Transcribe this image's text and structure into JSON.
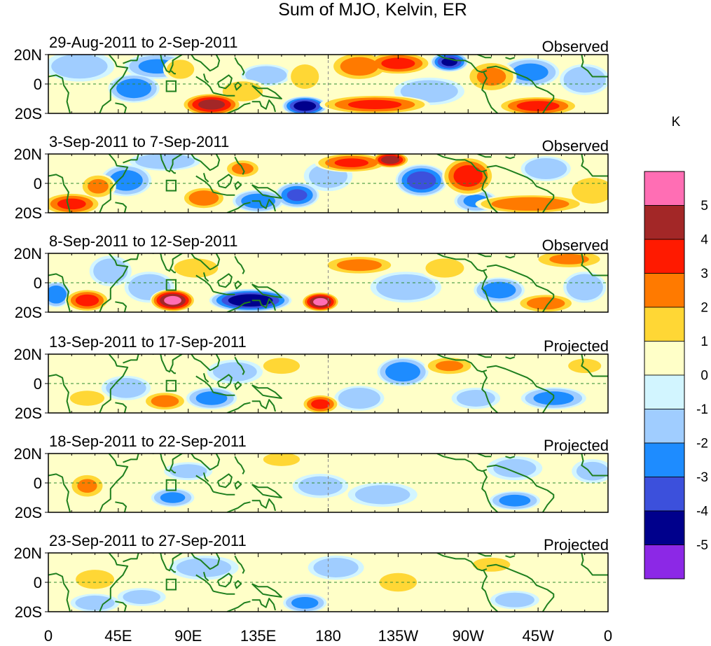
{
  "chart_data": {
    "type": "heatmap",
    "title": "Sum of MJO, Kelvin, ER",
    "colorbar": {
      "unit": "K",
      "tick_labels": [
        "5",
        "4",
        "3",
        "2",
        "1",
        "0",
        "-1",
        "-2",
        "-3",
        "-4",
        "-5"
      ],
      "colors": [
        "#ff6eb4",
        "#a32727",
        "#ff1a00",
        "#ff7a00",
        "#ffd735",
        "#ffffc8",
        "#d2f5ff",
        "#a0cdff",
        "#1e8cff",
        "#3c50dc",
        "#00008c",
        "#8c28e6"
      ]
    },
    "x_tick_labels": [
      "0",
      "45E",
      "90E",
      "135E",
      "180",
      "135W",
      "90W",
      "45W",
      "0"
    ],
    "y_tick_labels": [
      "20N",
      "0",
      "20S"
    ],
    "x_range": [
      0,
      360
    ],
    "y_range": [
      -20,
      20
    ],
    "panels": [
      {
        "date_range": "29-Aug-2011 to 2-Sep-2011",
        "status": "Observed",
        "blobs": [
          {
            "lon": 20,
            "lat": 12,
            "v": -1.5,
            "rx": 20,
            "ry": 10
          },
          {
            "lon": 55,
            "lat": -3,
            "v": -2.8,
            "rx": 14,
            "ry": 9
          },
          {
            "lon": 70,
            "lat": 12,
            "v": -2.2,
            "rx": 18,
            "ry": 8
          },
          {
            "lon": 85,
            "lat": 10,
            "v": 1.4,
            "rx": 10,
            "ry": 8
          },
          {
            "lon": 105,
            "lat": -14,
            "v": 4.3,
            "rx": 16,
            "ry": 7
          },
          {
            "lon": 125,
            "lat": -5,
            "v": 1.6,
            "rx": 14,
            "ry": 8
          },
          {
            "lon": 140,
            "lat": 6,
            "v": -1.8,
            "rx": 14,
            "ry": 7
          },
          {
            "lon": 165,
            "lat": -15,
            "v": -4.6,
            "rx": 12,
            "ry": 6
          },
          {
            "lon": 165,
            "lat": 5,
            "v": 1.5,
            "rx": 10,
            "ry": 10
          },
          {
            "lon": 200,
            "lat": 12,
            "v": 2.6,
            "rx": 16,
            "ry": 9
          },
          {
            "lon": 225,
            "lat": 14,
            "v": 3.3,
            "rx": 18,
            "ry": 7
          },
          {
            "lon": 210,
            "lat": -14,
            "v": 3.2,
            "rx": 30,
            "ry": 6
          },
          {
            "lon": 258,
            "lat": 15,
            "v": -4.2,
            "rx": 10,
            "ry": 6
          },
          {
            "lon": 245,
            "lat": -5,
            "v": -1.6,
            "rx": 20,
            "ry": 9
          },
          {
            "lon": 285,
            "lat": 5,
            "v": 2.2,
            "rx": 14,
            "ry": 10
          },
          {
            "lon": 315,
            "lat": -15,
            "v": 3.4,
            "rx": 22,
            "ry": 6
          },
          {
            "lon": 310,
            "lat": 8,
            "v": -2.4,
            "rx": 16,
            "ry": 9
          },
          {
            "lon": 345,
            "lat": 3,
            "v": -1.9,
            "rx": 14,
            "ry": 10
          }
        ]
      },
      {
        "date_range": "3-Sep-2011 to 7-Sep-2011",
        "status": "Observed",
        "blobs": [
          {
            "lon": 15,
            "lat": -14,
            "v": 3.2,
            "rx": 16,
            "ry": 7
          },
          {
            "lon": 32,
            "lat": -2,
            "v": 2.2,
            "rx": 10,
            "ry": 8
          },
          {
            "lon": 50,
            "lat": 2,
            "v": -2.6,
            "rx": 14,
            "ry": 10
          },
          {
            "lon": 75,
            "lat": 15,
            "v": -1.8,
            "rx": 20,
            "ry": 6
          },
          {
            "lon": 100,
            "lat": -10,
            "v": 2.8,
            "rx": 12,
            "ry": 7
          },
          {
            "lon": 125,
            "lat": 10,
            "v": 2.3,
            "rx": 10,
            "ry": 6
          },
          {
            "lon": 135,
            "lat": -12,
            "v": -2.7,
            "rx": 14,
            "ry": 7
          },
          {
            "lon": 160,
            "lat": -8,
            "v": -3.1,
            "rx": 12,
            "ry": 8
          },
          {
            "lon": 180,
            "lat": 5,
            "v": -1.4,
            "rx": 14,
            "ry": 10
          },
          {
            "lon": 195,
            "lat": 14,
            "v": 3.1,
            "rx": 20,
            "ry": 6
          },
          {
            "lon": 220,
            "lat": 16,
            "v": 4.6,
            "rx": 10,
            "ry": 5
          },
          {
            "lon": 240,
            "lat": 2,
            "v": -3.6,
            "rx": 14,
            "ry": 10
          },
          {
            "lon": 270,
            "lat": 5,
            "v": 3.6,
            "rx": 14,
            "ry": 12
          },
          {
            "lon": 275,
            "lat": -12,
            "v": -2.2,
            "rx": 12,
            "ry": 7
          },
          {
            "lon": 310,
            "lat": -14,
            "v": 3.0,
            "rx": 30,
            "ry": 6
          },
          {
            "lon": 320,
            "lat": 10,
            "v": -1.9,
            "rx": 14,
            "ry": 8
          },
          {
            "lon": 350,
            "lat": -5,
            "v": 1.8,
            "rx": 14,
            "ry": 10
          }
        ]
      },
      {
        "date_range": "8-Sep-2011 to 12-Sep-2011",
        "status": "Observed",
        "blobs": [
          {
            "lon": 5,
            "lat": -8,
            "v": -3.0,
            "rx": 8,
            "ry": 8
          },
          {
            "lon": 25,
            "lat": -12,
            "v": 3.4,
            "rx": 12,
            "ry": 7
          },
          {
            "lon": 40,
            "lat": 8,
            "v": -1.6,
            "rx": 12,
            "ry": 10
          },
          {
            "lon": 65,
            "lat": -3,
            "v": -1.9,
            "rx": 14,
            "ry": 10
          },
          {
            "lon": 80,
            "lat": -12,
            "v": 5.2,
            "rx": 12,
            "ry": 7
          },
          {
            "lon": 95,
            "lat": 10,
            "v": 1.4,
            "rx": 16,
            "ry": 8
          },
          {
            "lon": 130,
            "lat": -12,
            "v": -4.9,
            "rx": 22,
            "ry": 7
          },
          {
            "lon": 175,
            "lat": -13,
            "v": 5.2,
            "rx": 10,
            "ry": 6
          },
          {
            "lon": 200,
            "lat": 12,
            "v": 2.4,
            "rx": 20,
            "ry": 6
          },
          {
            "lon": 230,
            "lat": -3,
            "v": -1.8,
            "rx": 20,
            "ry": 10
          },
          {
            "lon": 255,
            "lat": 10,
            "v": 1.4,
            "rx": 14,
            "ry": 8
          },
          {
            "lon": 290,
            "lat": -5,
            "v": -2.6,
            "rx": 14,
            "ry": 8
          },
          {
            "lon": 320,
            "lat": -14,
            "v": 2.6,
            "rx": 16,
            "ry": 6
          },
          {
            "lon": 335,
            "lat": 16,
            "v": 2.1,
            "rx": 20,
            "ry": 6
          },
          {
            "lon": 345,
            "lat": -3,
            "v": -2.0,
            "rx": 12,
            "ry": 10
          }
        ]
      },
      {
        "date_range": "13-Sep-2011 to 17-Sep-2011",
        "status": "Projected",
        "blobs": [
          {
            "lon": 25,
            "lat": -10,
            "v": 1.6,
            "rx": 12,
            "ry": 6
          },
          {
            "lon": 50,
            "lat": -3,
            "v": -1.6,
            "rx": 14,
            "ry": 8
          },
          {
            "lon": 75,
            "lat": -12,
            "v": 2.5,
            "rx": 12,
            "ry": 6
          },
          {
            "lon": 105,
            "lat": -10,
            "v": -2.4,
            "rx": 14,
            "ry": 7
          },
          {
            "lon": 120,
            "lat": 8,
            "v": -1.4,
            "rx": 16,
            "ry": 8
          },
          {
            "lon": 150,
            "lat": 12,
            "v": 2.0,
            "rx": 12,
            "ry": 6
          },
          {
            "lon": 175,
            "lat": -14,
            "v": 3.3,
            "rx": 10,
            "ry": 6
          },
          {
            "lon": 200,
            "lat": -10,
            "v": -1.9,
            "rx": 14,
            "ry": 8
          },
          {
            "lon": 228,
            "lat": 8,
            "v": -2.8,
            "rx": 14,
            "ry": 9
          },
          {
            "lon": 258,
            "lat": 12,
            "v": 2.1,
            "rx": 14,
            "ry": 6
          },
          {
            "lon": 275,
            "lat": -10,
            "v": -1.4,
            "rx": 14,
            "ry": 7
          },
          {
            "lon": 325,
            "lat": -10,
            "v": -2.4,
            "rx": 18,
            "ry": 7
          },
          {
            "lon": 345,
            "lat": 12,
            "v": 1.4,
            "rx": 12,
            "ry": 6
          }
        ]
      },
      {
        "date_range": "18-Sep-2011 to 22-Sep-2011",
        "status": "Projected",
        "blobs": [
          {
            "lon": 25,
            "lat": -2,
            "v": 2.1,
            "rx": 10,
            "ry": 8
          },
          {
            "lon": 80,
            "lat": -10,
            "v": -2.2,
            "rx": 12,
            "ry": 6
          },
          {
            "lon": 90,
            "lat": 8,
            "v": -1.3,
            "rx": 14,
            "ry": 6
          },
          {
            "lon": 150,
            "lat": 16,
            "v": 2.0,
            "rx": 12,
            "ry": 5
          },
          {
            "lon": 175,
            "lat": -2,
            "v": -1.4,
            "rx": 16,
            "ry": 8
          },
          {
            "lon": 215,
            "lat": -8,
            "v": -1.4,
            "rx": 20,
            "ry": 8
          },
          {
            "lon": 300,
            "lat": -12,
            "v": -2.4,
            "rx": 14,
            "ry": 6
          },
          {
            "lon": 300,
            "lat": 10,
            "v": -1.3,
            "rx": 16,
            "ry": 8
          },
          {
            "lon": 350,
            "lat": 8,
            "v": -1.3,
            "rx": 12,
            "ry": 8
          }
        ]
      },
      {
        "date_range": "23-Sep-2011 to 27-Sep-2011",
        "status": "Projected",
        "blobs": [
          {
            "lon": 30,
            "lat": 2,
            "v": 1.4,
            "rx": 14,
            "ry": 8
          },
          {
            "lon": 30,
            "lat": -14,
            "v": -1.5,
            "rx": 14,
            "ry": 6
          },
          {
            "lon": 60,
            "lat": -10,
            "v": -1.3,
            "rx": 14,
            "ry": 6
          },
          {
            "lon": 100,
            "lat": 10,
            "v": -1.4,
            "rx": 20,
            "ry": 8
          },
          {
            "lon": 165,
            "lat": -14,
            "v": -2.4,
            "rx": 12,
            "ry": 6
          },
          {
            "lon": 185,
            "lat": 10,
            "v": -1.5,
            "rx": 16,
            "ry": 8
          },
          {
            "lon": 225,
            "lat": 0,
            "v": 1.3,
            "rx": 14,
            "ry": 8
          },
          {
            "lon": 285,
            "lat": 12,
            "v": 1.3,
            "rx": 14,
            "ry": 6
          },
          {
            "lon": 300,
            "lat": -12,
            "v": -1.5,
            "rx": 14,
            "ry": 6
          }
        ]
      }
    ]
  }
}
